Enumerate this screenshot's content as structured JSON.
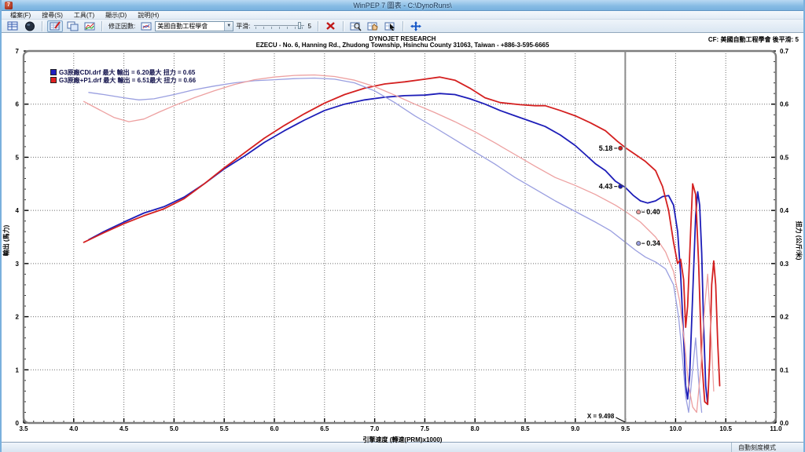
{
  "window": {
    "title": "WinPEP 7   圖表 - C:\\DynoRuns\\",
    "app_icon": "7"
  },
  "menu": {
    "items": [
      "檔案(F)",
      "搜尋(S)",
      "工具(T)",
      "顯示(D)",
      "說明(H)"
    ]
  },
  "toolbar": {
    "correction_label": "修正因數:",
    "correction_value": "美國自動工程學會",
    "smooth_label": "平滑:",
    "smooth_value": "5"
  },
  "icons": {
    "dropdown_arrow": "▼"
  },
  "header": {
    "brand": "DYNOJET RESEARCH",
    "address": "EZECU - No. 6, Hanning Rd., Zhudong Township, Hsinchu County 31063, Taiwan - +886-3-595-6665",
    "cf_info": "CF: 美國自動工程學會  後平滑: 5"
  },
  "legend": {
    "items": [
      {
        "label": "G3原廠CDI.drf 最大 輸出 = 6.20最大 扭力 = 0.65",
        "color": "#2020c0"
      },
      {
        "label": "G3原廠+P1.drf 最大 輸出 = 6.51最大 扭力 = 0.66",
        "color": "#e02020"
      }
    ]
  },
  "axes": {
    "x_title": "引擎速度 (轉速(PRM)x1000)",
    "y_left_title": "輸出 (馬力)",
    "y_right_title": "扭力 (公斤/米)"
  },
  "statusbar": {
    "mode": "自動刻度模式"
  },
  "chart_data": {
    "type": "line",
    "title": "",
    "xlabel": "引擎速度 (轉速(PRM)x1000)",
    "ylabel_left": "輸出 (馬力)",
    "ylabel_right": "扭力 (公斤/米)",
    "xlim": [
      3.5,
      11.0
    ],
    "ylim_left": [
      0,
      7
    ],
    "ylim_right": [
      0,
      0.7
    ],
    "grid": true,
    "x_ticks": [
      3.5,
      4.0,
      4.5,
      5.0,
      5.5,
      6.0,
      6.5,
      7.0,
      7.5,
      8.0,
      8.5,
      9.0,
      9.5,
      10.0,
      10.5,
      11.0
    ],
    "y_left_ticks": [
      0,
      1,
      2,
      3,
      4,
      5,
      6,
      7
    ],
    "y_right_ticks": [
      0.0,
      0.1,
      0.2,
      0.3,
      0.4,
      0.5,
      0.6,
      0.7
    ],
    "cursor": {
      "x": 9.498,
      "label": "X = 9.498",
      "callouts": [
        {
          "text": "5.18",
          "x": 9.45,
          "y": 5.17,
          "axis": "left",
          "color": "#d42020",
          "side": "left"
        },
        {
          "text": "4.43",
          "x": 9.45,
          "y": 4.45,
          "axis": "left",
          "color": "#1d1db8",
          "side": "left"
        },
        {
          "text": "0.40",
          "x": 9.63,
          "y": 0.397,
          "axis": "right",
          "color": "#eda0a0",
          "side": "right"
        },
        {
          "text": "0.34",
          "x": 9.63,
          "y": 0.338,
          "axis": "right",
          "color": "#9a9fe0",
          "side": "right"
        }
      ]
    },
    "series": [
      {
        "name": "G3原廠CDI.drf 輸出",
        "axis": "left",
        "color": "#1d1db8",
        "width": 1.8,
        "points": [
          [
            4.15,
            3.45
          ],
          [
            4.3,
            3.6
          ],
          [
            4.5,
            3.78
          ],
          [
            4.7,
            3.95
          ],
          [
            4.9,
            4.07
          ],
          [
            5.1,
            4.25
          ],
          [
            5.3,
            4.5
          ],
          [
            5.5,
            4.78
          ],
          [
            5.7,
            5.02
          ],
          [
            5.9,
            5.28
          ],
          [
            6.1,
            5.5
          ],
          [
            6.3,
            5.7
          ],
          [
            6.5,
            5.88
          ],
          [
            6.7,
            6.0
          ],
          [
            6.9,
            6.08
          ],
          [
            7.1,
            6.13
          ],
          [
            7.3,
            6.16
          ],
          [
            7.5,
            6.17
          ],
          [
            7.65,
            6.2
          ],
          [
            7.8,
            6.18
          ],
          [
            7.95,
            6.1
          ],
          [
            8.1,
            6.0
          ],
          [
            8.25,
            5.88
          ],
          [
            8.4,
            5.78
          ],
          [
            8.55,
            5.68
          ],
          [
            8.7,
            5.58
          ],
          [
            8.85,
            5.42
          ],
          [
            9.0,
            5.22
          ],
          [
            9.1,
            5.05
          ],
          [
            9.2,
            4.88
          ],
          [
            9.3,
            4.75
          ],
          [
            9.4,
            4.55
          ],
          [
            9.5,
            4.43
          ],
          [
            9.58,
            4.28
          ],
          [
            9.65,
            4.18
          ],
          [
            9.72,
            4.14
          ],
          [
            9.8,
            4.18
          ],
          [
            9.87,
            4.26
          ],
          [
            9.93,
            4.28
          ],
          [
            9.98,
            4.1
          ],
          [
            10.02,
            3.6
          ],
          [
            10.05,
            2.8
          ],
          [
            10.08,
            1.6
          ],
          [
            10.1,
            0.7
          ],
          [
            10.12,
            0.45
          ],
          [
            10.14,
            0.9
          ],
          [
            10.17,
            2.4
          ],
          [
            10.2,
            3.9
          ],
          [
            10.22,
            4.35
          ],
          [
            10.24,
            4.1
          ],
          [
            10.26,
            3.2
          ],
          [
            10.28,
            1.8
          ],
          [
            10.3,
            0.7
          ],
          [
            10.32,
            0.35
          ]
        ]
      },
      {
        "name": "G3原廠+P1.drf 輸出",
        "axis": "left",
        "color": "#d42020",
        "width": 1.8,
        "points": [
          [
            4.1,
            3.4
          ],
          [
            4.3,
            3.58
          ],
          [
            4.5,
            3.75
          ],
          [
            4.7,
            3.9
          ],
          [
            4.9,
            4.03
          ],
          [
            5.1,
            4.22
          ],
          [
            5.3,
            4.5
          ],
          [
            5.5,
            4.8
          ],
          [
            5.7,
            5.08
          ],
          [
            5.9,
            5.36
          ],
          [
            6.1,
            5.6
          ],
          [
            6.3,
            5.82
          ],
          [
            6.5,
            6.02
          ],
          [
            6.7,
            6.18
          ],
          [
            6.9,
            6.3
          ],
          [
            7.1,
            6.38
          ],
          [
            7.3,
            6.42
          ],
          [
            7.5,
            6.47
          ],
          [
            7.65,
            6.51
          ],
          [
            7.8,
            6.45
          ],
          [
            7.95,
            6.3
          ],
          [
            8.1,
            6.12
          ],
          [
            8.25,
            6.03
          ],
          [
            8.45,
            5.99
          ],
          [
            8.6,
            5.97
          ],
          [
            8.7,
            5.97
          ],
          [
            8.85,
            5.88
          ],
          [
            9.0,
            5.78
          ],
          [
            9.15,
            5.65
          ],
          [
            9.3,
            5.5
          ],
          [
            9.42,
            5.3
          ],
          [
            9.5,
            5.18
          ],
          [
            9.6,
            5.05
          ],
          [
            9.7,
            4.92
          ],
          [
            9.8,
            4.75
          ],
          [
            9.87,
            4.45
          ],
          [
            9.93,
            4.0
          ],
          [
            9.98,
            3.4
          ],
          [
            10.02,
            3.0
          ],
          [
            10.05,
            3.08
          ],
          [
            10.08,
            2.7
          ],
          [
            10.1,
            1.8
          ],
          [
            10.12,
            2.2
          ],
          [
            10.15,
            3.6
          ],
          [
            10.17,
            4.5
          ],
          [
            10.2,
            4.3
          ],
          [
            10.23,
            3.0
          ],
          [
            10.26,
            1.2
          ],
          [
            10.29,
            0.4
          ],
          [
            10.32,
            0.35
          ],
          [
            10.34,
            1.2
          ],
          [
            10.36,
            2.6
          ],
          [
            10.38,
            3.05
          ],
          [
            10.4,
            2.6
          ],
          [
            10.42,
            1.5
          ],
          [
            10.44,
            0.7
          ]
        ]
      },
      {
        "name": "G3原廠CDI.drf 扭力",
        "axis": "right",
        "color": "#9a9fe0",
        "width": 1.3,
        "points": [
          [
            4.15,
            0.622
          ],
          [
            4.3,
            0.618
          ],
          [
            4.5,
            0.612
          ],
          [
            4.65,
            0.608
          ],
          [
            4.8,
            0.61
          ],
          [
            5.0,
            0.618
          ],
          [
            5.2,
            0.627
          ],
          [
            5.4,
            0.634
          ],
          [
            5.6,
            0.64
          ],
          [
            5.8,
            0.644
          ],
          [
            6.0,
            0.646
          ],
          [
            6.2,
            0.648
          ],
          [
            6.4,
            0.649
          ],
          [
            6.6,
            0.647
          ],
          [
            6.8,
            0.64
          ],
          [
            7.0,
            0.625
          ],
          [
            7.2,
            0.603
          ],
          [
            7.4,
            0.578
          ],
          [
            7.6,
            0.556
          ],
          [
            7.8,
            0.533
          ],
          [
            8.0,
            0.51
          ],
          [
            8.2,
            0.487
          ],
          [
            8.4,
            0.462
          ],
          [
            8.6,
            0.44
          ],
          [
            8.8,
            0.418
          ],
          [
            9.0,
            0.398
          ],
          [
            9.2,
            0.378
          ],
          [
            9.35,
            0.362
          ],
          [
            9.5,
            0.34
          ],
          [
            9.6,
            0.325
          ],
          [
            9.7,
            0.312
          ],
          [
            9.8,
            0.303
          ],
          [
            9.9,
            0.29
          ],
          [
            9.98,
            0.26
          ],
          [
            10.03,
            0.2
          ],
          [
            10.07,
            0.12
          ],
          [
            10.1,
            0.05
          ],
          [
            10.13,
            0.02
          ],
          [
            10.17,
            0.1
          ],
          [
            10.2,
            0.16
          ],
          [
            10.23,
            0.08
          ],
          [
            10.26,
            0.02
          ]
        ]
      },
      {
        "name": "G3原廠+P1.drf 扭力",
        "axis": "right",
        "color": "#eda0a0",
        "width": 1.3,
        "points": [
          [
            4.1,
            0.605
          ],
          [
            4.25,
            0.59
          ],
          [
            4.4,
            0.575
          ],
          [
            4.55,
            0.567
          ],
          [
            4.7,
            0.572
          ],
          [
            4.85,
            0.585
          ],
          [
            5.0,
            0.597
          ],
          [
            5.2,
            0.612
          ],
          [
            5.4,
            0.625
          ],
          [
            5.6,
            0.637
          ],
          [
            5.8,
            0.646
          ],
          [
            6.0,
            0.651
          ],
          [
            6.2,
            0.654
          ],
          [
            6.4,
            0.655
          ],
          [
            6.6,
            0.652
          ],
          [
            6.8,
            0.645
          ],
          [
            7.0,
            0.633
          ],
          [
            7.2,
            0.617
          ],
          [
            7.4,
            0.6
          ],
          [
            7.6,
            0.584
          ],
          [
            7.8,
            0.567
          ],
          [
            8.0,
            0.548
          ],
          [
            8.2,
            0.527
          ],
          [
            8.4,
            0.505
          ],
          [
            8.6,
            0.483
          ],
          [
            8.8,
            0.462
          ],
          [
            9.0,
            0.447
          ],
          [
            9.2,
            0.43
          ],
          [
            9.4,
            0.41
          ],
          [
            9.5,
            0.398
          ],
          [
            9.65,
            0.378
          ],
          [
            9.8,
            0.35
          ],
          [
            9.9,
            0.322
          ],
          [
            9.98,
            0.285
          ],
          [
            10.04,
            0.23
          ],
          [
            10.09,
            0.15
          ],
          [
            10.13,
            0.07
          ],
          [
            10.17,
            0.03
          ],
          [
            10.21,
            0.02
          ],
          [
            10.25,
            0.1
          ],
          [
            10.29,
            0.22
          ],
          [
            10.32,
            0.28
          ],
          [
            10.35,
            0.18
          ],
          [
            10.38,
            0.06
          ]
        ]
      }
    ]
  }
}
